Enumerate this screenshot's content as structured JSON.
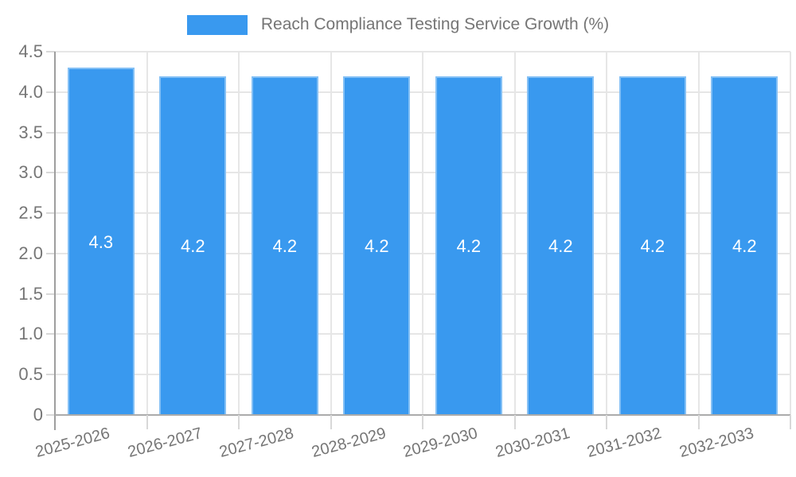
{
  "chart_data": {
    "type": "bar",
    "title": "Reach Compliance Testing Service Growth (%)",
    "categories": [
      "2025-2026",
      "2026-2027",
      "2027-2028",
      "2028-2029",
      "2029-2030",
      "2030-2031",
      "2031-2032",
      "2032-2033"
    ],
    "values": [
      4.3,
      4.2,
      4.2,
      4.2,
      4.2,
      4.2,
      4.2,
      4.2
    ],
    "value_labels": [
      "4.3",
      "4.2",
      "4.2",
      "4.2",
      "4.2",
      "4.2",
      "4.2",
      "4.2"
    ],
    "xlabel": "",
    "ylabel": "",
    "ylim": [
      0,
      4.5
    ],
    "ytick_step": 0.5,
    "ytick_labels": [
      "0",
      "0.5",
      "1.0",
      "1.5",
      "2.0",
      "2.5",
      "3.0",
      "3.5",
      "4.0",
      "4.5"
    ],
    "grid": true,
    "legend_position": "top",
    "colors": {
      "bar": "#3999EF",
      "bar_value_text": "#FFFFFF",
      "gridline": "#E6E6E6",
      "y_axis_line": "#9E9E9E",
      "x_axis_line": "#ABABAB",
      "tick_mark": "#D8D8D8",
      "tick_text": "#757575"
    }
  }
}
